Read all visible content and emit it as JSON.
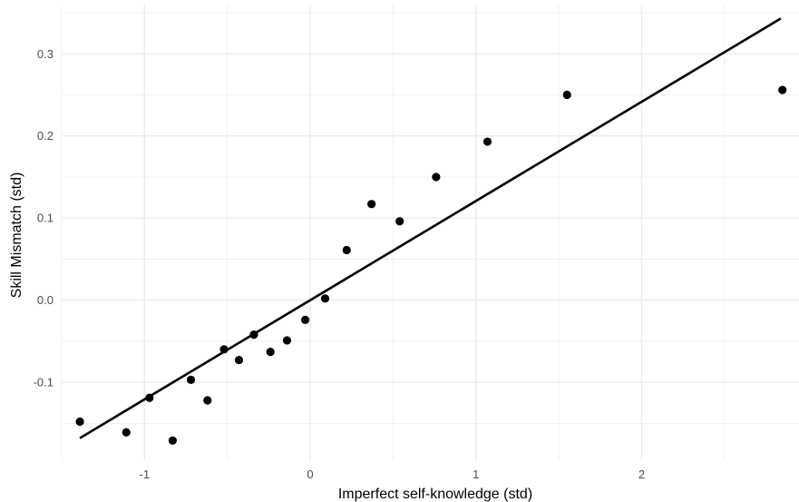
{
  "chart_data": {
    "type": "scatter",
    "title": "",
    "xlabel": "Imperfect self-knowledge (std)",
    "ylabel": "Skill Mismatch (std)",
    "xlim": [
      -1.5,
      2.95
    ],
    "ylim": [
      -0.195,
      0.36
    ],
    "x_ticks": [
      -1,
      0,
      1,
      2
    ],
    "x_tick_labels": [
      "-1",
      "0",
      "1",
      "2"
    ],
    "y_ticks": [
      -0.1,
      0.0,
      0.1,
      0.2,
      0.3
    ],
    "y_tick_labels": [
      "-0.1",
      "0.0",
      "0.1",
      "0.2",
      "0.3"
    ],
    "grid": true,
    "legend": "none",
    "colors": {
      "points": "#000000",
      "line": "#000000",
      "grid": "#ebebeb",
      "tick_text": "#4d4d4d"
    },
    "points": [
      {
        "x": -1.39,
        "y": -0.148
      },
      {
        "x": -1.11,
        "y": -0.161
      },
      {
        "x": -0.97,
        "y": -0.119
      },
      {
        "x": -0.83,
        "y": -0.171
      },
      {
        "x": -0.72,
        "y": -0.097
      },
      {
        "x": -0.62,
        "y": -0.122
      },
      {
        "x": -0.52,
        "y": -0.06
      },
      {
        "x": -0.43,
        "y": -0.073
      },
      {
        "x": -0.34,
        "y": -0.042
      },
      {
        "x": -0.24,
        "y": -0.063
      },
      {
        "x": -0.14,
        "y": -0.049
      },
      {
        "x": -0.03,
        "y": -0.024
      },
      {
        "x": 0.09,
        "y": 0.002
      },
      {
        "x": 0.22,
        "y": 0.061
      },
      {
        "x": 0.37,
        "y": 0.117
      },
      {
        "x": 0.54,
        "y": 0.096
      },
      {
        "x": 0.76,
        "y": 0.15
      },
      {
        "x": 1.07,
        "y": 0.193
      },
      {
        "x": 1.55,
        "y": 0.25
      },
      {
        "x": 2.85,
        "y": 0.256
      }
    ],
    "fit_line": {
      "x": [
        -1.39,
        2.84
      ],
      "y": [
        -0.168,
        0.343
      ]
    }
  }
}
